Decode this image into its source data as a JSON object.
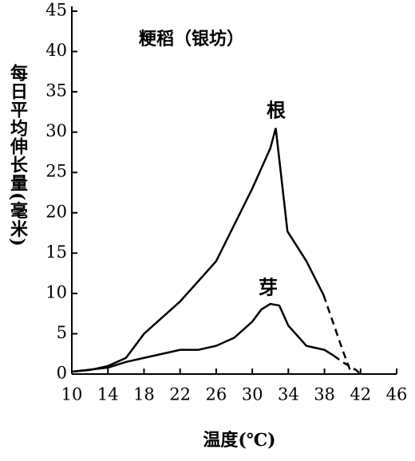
{
  "chart_data": {
    "type": "line",
    "title": "粳稻（银坊）",
    "x_label": "温度(℃)",
    "y_label": "每日平均伸长量(毫米)",
    "xlim": [
      10,
      46
    ],
    "xticks": [
      10,
      14,
      18,
      22,
      26,
      30,
      34,
      38,
      42,
      46
    ],
    "ylim": [
      0,
      45
    ],
    "yticks": [
      0,
      5,
      10,
      15,
      20,
      25,
      30,
      35,
      40,
      45
    ],
    "series": [
      {
        "name": "根",
        "color": "#000000",
        "style": "solid",
        "x": [
          10,
          12,
          14,
          16,
          18,
          22,
          26,
          30,
          32,
          32.6,
          33.9,
          36,
          37.9
        ],
        "values": [
          0.3,
          0.5,
          1,
          2,
          5,
          9,
          14,
          23,
          28,
          30.5,
          17.7,
          14,
          9.8
        ]
      },
      {
        "color": "#000000",
        "style": "dashed",
        "x": [
          37.9,
          40,
          41
        ],
        "values": [
          9.8,
          3,
          0
        ]
      },
      {
        "name": "芽",
        "color": "#000000",
        "style": "solid",
        "x": [
          10,
          14,
          16,
          18,
          22,
          24,
          26,
          28,
          30,
          31,
          32,
          33,
          34,
          36,
          38,
          39
        ],
        "values": [
          0.3,
          0.8,
          1.5,
          2,
          3,
          3,
          3.5,
          4.5,
          6.5,
          8,
          8.7,
          8.5,
          6,
          3.5,
          3,
          2.3
        ]
      },
      {
        "color": "#000000",
        "style": "dashed",
        "x": [
          39,
          40,
          41.5,
          42
        ],
        "values": [
          2.3,
          1.5,
          0.5,
          0
        ]
      }
    ]
  }
}
